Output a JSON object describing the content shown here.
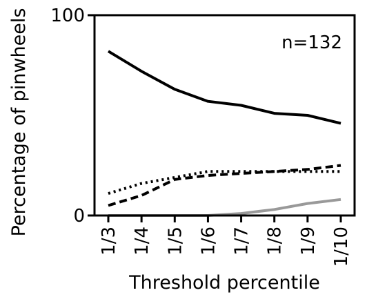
{
  "chart_data": {
    "type": "line",
    "title": "",
    "xlabel": "Threshold percentile",
    "ylabel": "Percentage of pinwheels",
    "categories": [
      "1/3",
      "1/4",
      "1/5",
      "1/6",
      "1/7",
      "1/8",
      "1/9",
      "1/10"
    ],
    "ylim": [
      0,
      100
    ],
    "yticks": [
      "0",
      "100"
    ],
    "annotation": "n=132",
    "grid": false,
    "series": [
      {
        "style": "solid",
        "color": "#000000",
        "values": [
          82,
          72,
          63,
          57,
          55,
          51,
          50,
          46
        ]
      },
      {
        "style": "dotted",
        "color": "#000000",
        "values": [
          11,
          16,
          19,
          22,
          22,
          22,
          22,
          22
        ]
      },
      {
        "style": "dashed",
        "color": "#000000",
        "values": [
          5,
          10,
          18,
          20,
          21,
          22,
          23,
          25
        ]
      },
      {
        "style": "solid",
        "color": "#999999",
        "values": [
          0,
          0,
          0,
          0,
          1,
          3,
          6,
          8
        ]
      }
    ]
  }
}
